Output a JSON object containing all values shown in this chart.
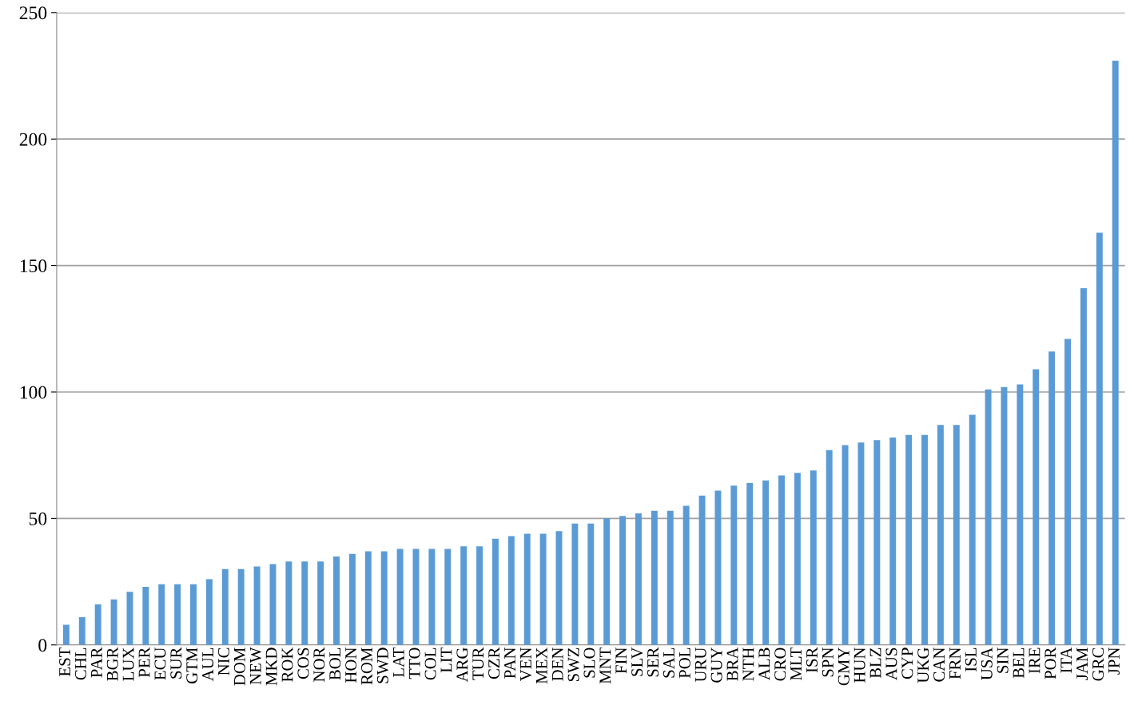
{
  "chart_data": {
    "type": "bar",
    "categories": [
      "EST",
      "CHL",
      "PAR",
      "BGR",
      "LUX",
      "PER",
      "ECU",
      "SUR",
      "GTM",
      "AUL",
      "NIC",
      "DOM",
      "NEW",
      "MKD",
      "ROK",
      "COS",
      "NOR",
      "BOL",
      "HON",
      "ROM",
      "SWD",
      "LAT",
      "TTO",
      "COL",
      "LIT",
      "ARG",
      "TUR",
      "CZR",
      "PAN",
      "VEN",
      "MEX",
      "DEN",
      "SWZ",
      "SLO",
      "MNT",
      "FIN",
      "SLV",
      "SER",
      "SAL",
      "POL",
      "URU",
      "GUY",
      "BRA",
      "NTH",
      "ALB",
      "CRO",
      "MLT",
      "ISR",
      "SPN",
      "GMY",
      "HUN",
      "BLZ",
      "AUS",
      "CYP",
      "UKG",
      "CAN",
      "FRN",
      "ISL",
      "USA",
      "SIN",
      "BEL",
      "IRE",
      "POR",
      "ITA",
      "JAM",
      "GRC",
      "JPN"
    ],
    "values": [
      8,
      11,
      16,
      18,
      21,
      23,
      24,
      24,
      24,
      26,
      30,
      30,
      31,
      32,
      33,
      33,
      33,
      35,
      36,
      37,
      37,
      38,
      38,
      38,
      38,
      39,
      39,
      42,
      43,
      44,
      44,
      45,
      48,
      48,
      50,
      51,
      52,
      53,
      53,
      55,
      59,
      61,
      63,
      64,
      65,
      67,
      68,
      69,
      77,
      79,
      80,
      81,
      82,
      83,
      83,
      87,
      87,
      91,
      101,
      102,
      103,
      109,
      116,
      121,
      141,
      163,
      231
    ],
    "color": "#5b9bd5",
    "ylim": [
      0,
      250
    ],
    "yticks": [
      0,
      50,
      100,
      150,
      200,
      250
    ],
    "grid": "y"
  }
}
